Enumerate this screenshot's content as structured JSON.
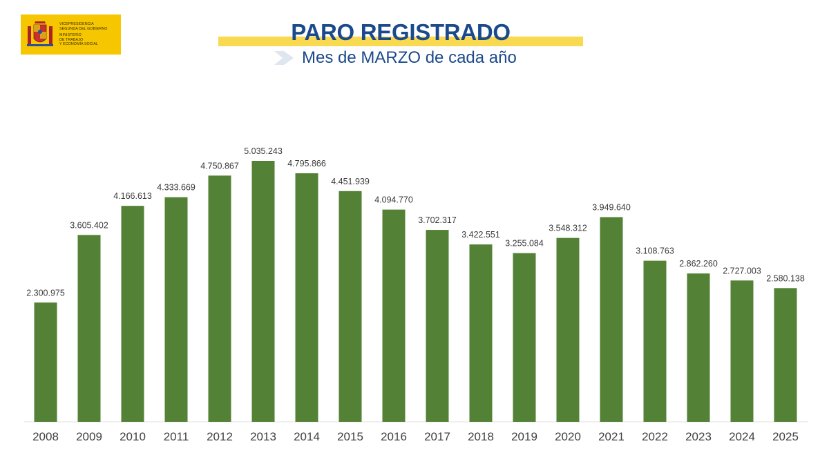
{
  "logo": {
    "line1": "VICEPRESIDENCIA\nSEGUNDA DEL GOBIERNO",
    "line2": "MINISTERIO\nDE TRABAJO\nY ECONOMÍA SOCIAL",
    "color": "#f6c700"
  },
  "header": {
    "title": "PARO REGISTRADO",
    "subtitle": "Mes de MARZO de cada año"
  },
  "colors": {
    "bar": "#538135",
    "title": "#1b4a8c",
    "accent": "#f8d94f"
  },
  "chart_data": {
    "type": "bar",
    "title": "PARO REGISTRADO",
    "subtitle": "Mes de MARZO de cada año",
    "categories": [
      "2008",
      "2009",
      "2010",
      "2011",
      "2012",
      "2013",
      "2014",
      "2015",
      "2016",
      "2017",
      "2018",
      "2019",
      "2020",
      "2021",
      "2022",
      "2023",
      "2024",
      "2025"
    ],
    "values": [
      2300975,
      3605402,
      4166613,
      4333669,
      4750867,
      5035243,
      4795866,
      4451939,
      4094770,
      3702317,
      3422551,
      3255084,
      3548312,
      3949640,
      3108763,
      2862260,
      2727003,
      2580138
    ],
    "labels": [
      "2.300.975",
      "3.605.402",
      "4.166.613",
      "4.333.669",
      "4.750.867",
      "5.035.243",
      "4.795.866",
      "4.451.939",
      "4.094.770",
      "3.702.317",
      "3.422.551",
      "3.255.084",
      "3.548.312",
      "3.949.640",
      "3.108.763",
      "2.862.260",
      "2.727.003",
      "2.580.138"
    ],
    "xlabel": "",
    "ylabel": "",
    "ylim": [
      0,
      5035243
    ],
    "grid": false,
    "legend": "none"
  }
}
